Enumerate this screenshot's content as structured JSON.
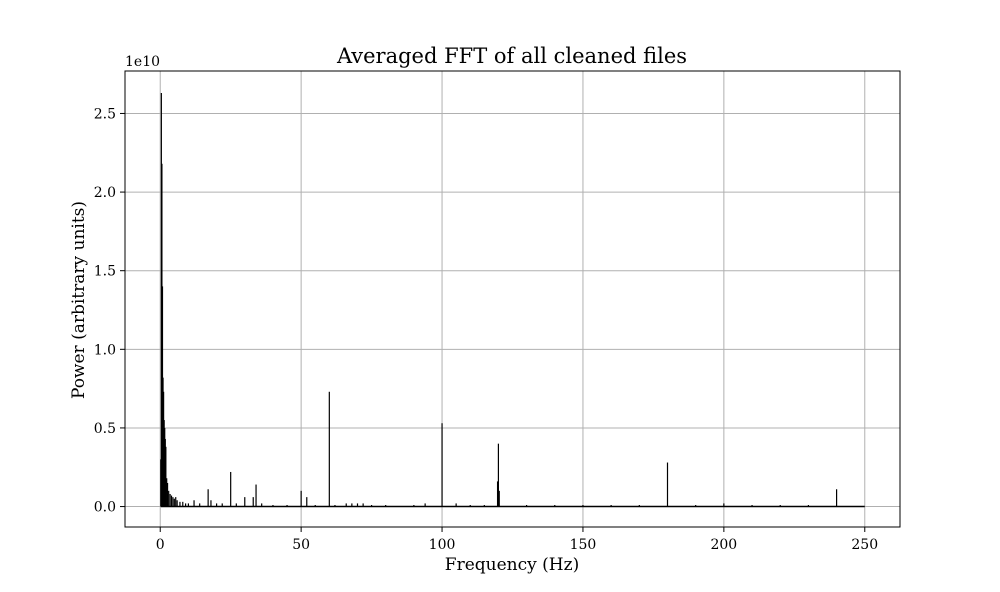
{
  "chart_data": {
    "type": "line",
    "title": "Averaged FFT of all cleaned files",
    "xlabel": "Frequency (Hz)",
    "ylabel": "Power (arbitrary units)",
    "y_offset_label": "1e10",
    "y_scale_factor": 10000000000,
    "xlim": [
      -12.5,
      262.5
    ],
    "ylim": [
      -0.13,
      2.77
    ],
    "x_ticks": [
      0,
      50,
      100,
      150,
      200,
      250
    ],
    "x_tick_labels": [
      "0",
      "50",
      "100",
      "150",
      "200",
      "250"
    ],
    "y_ticks": [
      0.0,
      0.5,
      1.0,
      1.5,
      2.0,
      2.5
    ],
    "y_tick_labels": [
      "0.0",
      "0.5",
      "1.0",
      "1.5",
      "2.0",
      "2.5"
    ],
    "grid": true,
    "line_color": "#000000",
    "series": [
      {
        "x": [
          0.2,
          0.4,
          0.6,
          0.8,
          1.0,
          1.2,
          1.4,
          1.6,
          1.8,
          2.0,
          2.3,
          2.6,
          3.0,
          3.5,
          4.0,
          4.5,
          5.0,
          5.5,
          6.0,
          7.0,
          8.0,
          9.0,
          10.0,
          12.0,
          14.0,
          17.0,
          18.0,
          20.0,
          22.0,
          25.0,
          27.0,
          30.0,
          33.0,
          34.0,
          36.0,
          40.0,
          45.0,
          50.0,
          52.0,
          55.0,
          60.0,
          62.0,
          66.0,
          68.0,
          70.0,
          72.0,
          75.0,
          80.0,
          90.0,
          94.0,
          100.0,
          105.0,
          110.0,
          115.0,
          119.7,
          120.0,
          120.3,
          130.0,
          140.0,
          150.0,
          160.0,
          170.0,
          180.0,
          190.0,
          200.0,
          210.0,
          220.0,
          230.0,
          240.0,
          250.0
        ],
        "y": [
          0.3,
          2.63,
          2.18,
          1.4,
          0.82,
          0.73,
          0.55,
          0.5,
          0.43,
          0.38,
          0.18,
          0.15,
          0.1,
          0.08,
          0.07,
          0.06,
          0.05,
          0.06,
          0.04,
          0.03,
          0.03,
          0.02,
          0.02,
          0.04,
          0.02,
          0.11,
          0.04,
          0.02,
          0.02,
          0.22,
          0.02,
          0.06,
          0.06,
          0.14,
          0.02,
          0.01,
          0.01,
          0.1,
          0.06,
          0.01,
          0.73,
          0.01,
          0.02,
          0.02,
          0.02,
          0.02,
          0.01,
          0.01,
          0.01,
          0.02,
          0.53,
          0.02,
          0.01,
          0.01,
          0.16,
          0.4,
          0.1,
          0.01,
          0.01,
          0.01,
          0.01,
          0.01,
          0.28,
          0.01,
          0.02,
          0.01,
          0.01,
          0.01,
          0.11,
          0.0
        ]
      }
    ]
  }
}
